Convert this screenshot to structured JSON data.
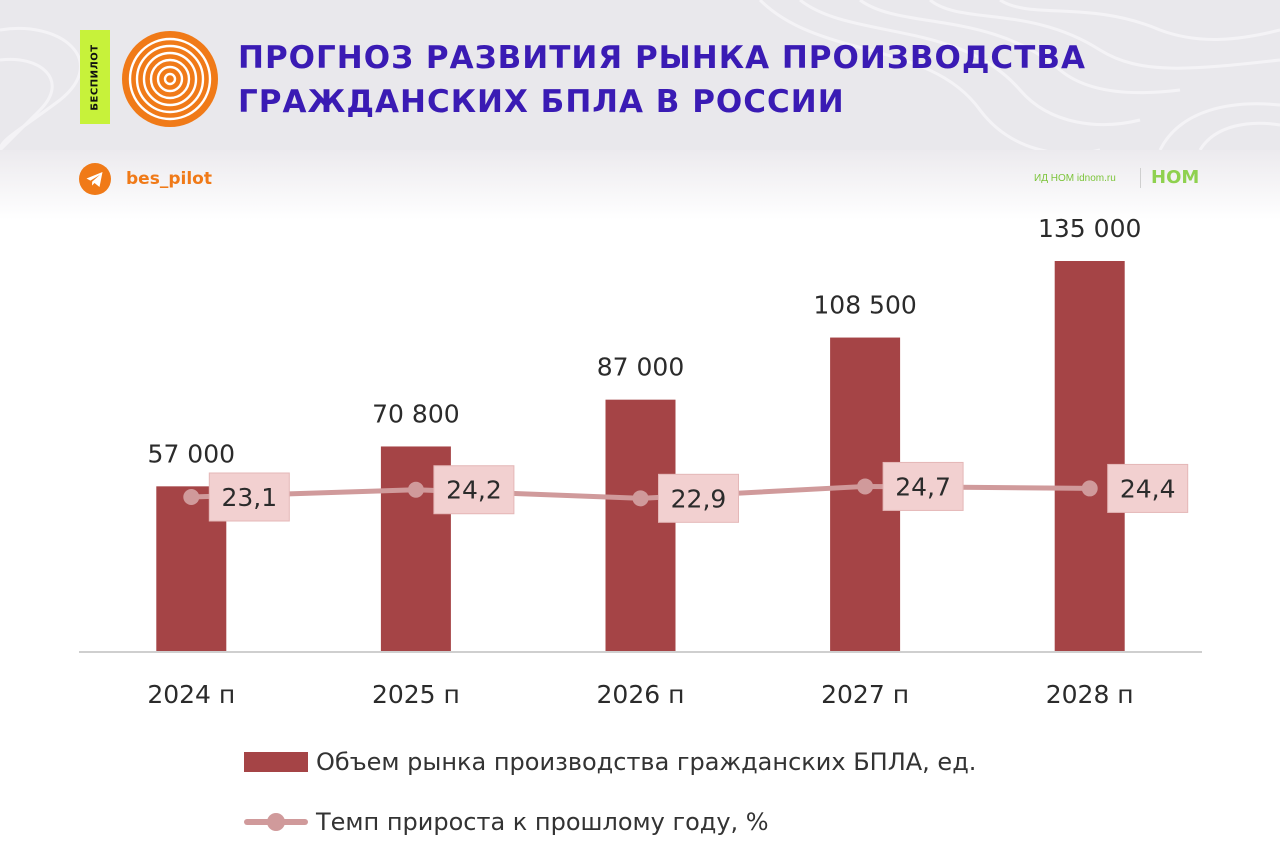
{
  "header": {
    "brand_tag": "БЕСПИЛОТ",
    "title_line1": "ПРОГНОЗ РАЗВИТИЯ РЫНКА ПРОИЗВОДСТВА",
    "title_line2": "ГРАЖДАНСКИХ БПЛА В РОССИИ",
    "telegram_handle": "bes_pilot",
    "publisher_text": "ИД НОМ idnom.ru",
    "publisher_logo": "НОМ",
    "icons": [
      "orange-rings-logo-icon",
      "telegram-icon"
    ]
  },
  "colors": {
    "title": "#3a1bb4",
    "accent_orange": "#f07a18",
    "brand_tag": "#c7f23a",
    "bar": "#a54446",
    "line": "#d09a9b",
    "label_box": "#f2d0d0",
    "publisher": "#7cc43a"
  },
  "chart_data": {
    "type": "bar",
    "categories": [
      "2024 п",
      "2025 п",
      "2026 п",
      "2027 п",
      "2028 п"
    ],
    "series": [
      {
        "name": "Объем рынка производства гражданских БПЛА, ед.",
        "type": "bar",
        "values": [
          57000,
          70800,
          87000,
          108500,
          135000
        ],
        "labels": [
          "57 000",
          "70 800",
          "87 000",
          "108 500",
          "135 000"
        ]
      },
      {
        "name": "Темп прироста к прошлому году, %",
        "type": "line",
        "values": [
          23.1,
          24.2,
          22.9,
          24.7,
          24.4
        ],
        "labels": [
          "23,1",
          "24,2",
          "22,9",
          "24,7",
          "24,4"
        ]
      }
    ],
    "title": "",
    "xlabel": "",
    "ylabel": "",
    "ylim": [
      0,
      135000
    ],
    "grid": false,
    "legend": "bottom"
  }
}
